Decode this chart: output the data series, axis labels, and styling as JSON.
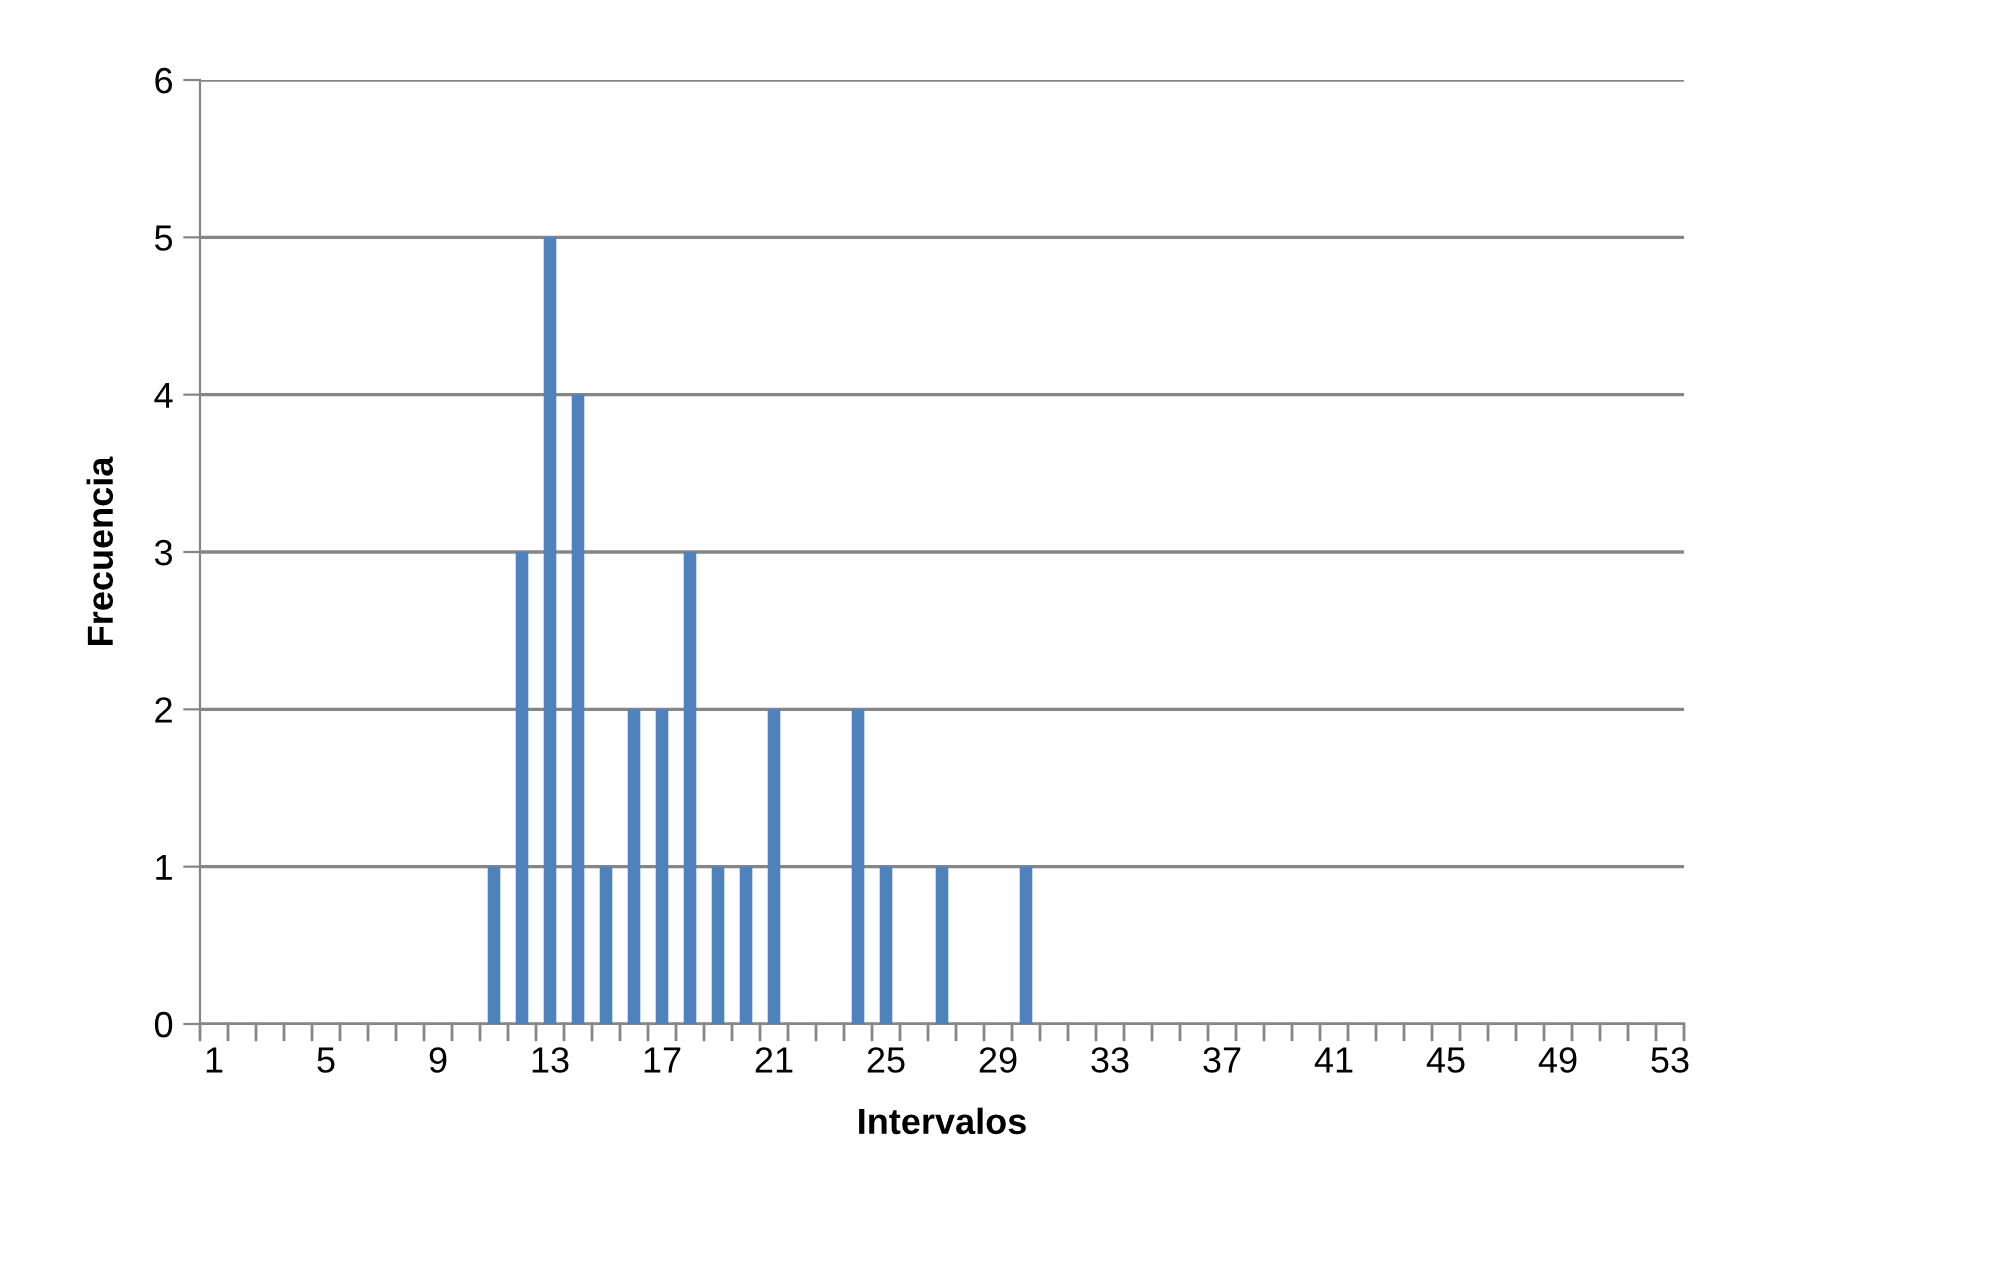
{
  "chart_data": {
    "type": "bar",
    "xlabel": "Intervalos",
    "ylabel": "Frecuencia",
    "categories": [
      "1",
      null,
      null,
      null,
      "5",
      null,
      null,
      null,
      "9",
      null,
      null,
      null,
      "13",
      null,
      null,
      null,
      "17",
      null,
      null,
      null,
      "21",
      null,
      null,
      null,
      "25",
      null,
      null,
      null,
      "29",
      null,
      null,
      null,
      "33",
      null,
      null,
      null,
      "37",
      null,
      null,
      null,
      "41",
      null,
      null,
      null,
      "45",
      null,
      null,
      null,
      "49",
      null,
      null,
      null,
      "53"
    ],
    "values": [
      0,
      0,
      0,
      0,
      0,
      0,
      0,
      0,
      0,
      0,
      1,
      3,
      5,
      4,
      1,
      2,
      2,
      3,
      1,
      1,
      2,
      0,
      0,
      2,
      1,
      0,
      1,
      0,
      0,
      1,
      0,
      0,
      0,
      0,
      0,
      0,
      0,
      0,
      0,
      0,
      0,
      0,
      0,
      0,
      0,
      0,
      0,
      0,
      0,
      0,
      0,
      0,
      0
    ],
    "color": "#4f81bd",
    "ylim": [
      0,
      6
    ],
    "yticks": [
      0,
      1,
      2,
      3,
      4,
      5,
      6
    ],
    "grid": "y",
    "legend": false
  }
}
